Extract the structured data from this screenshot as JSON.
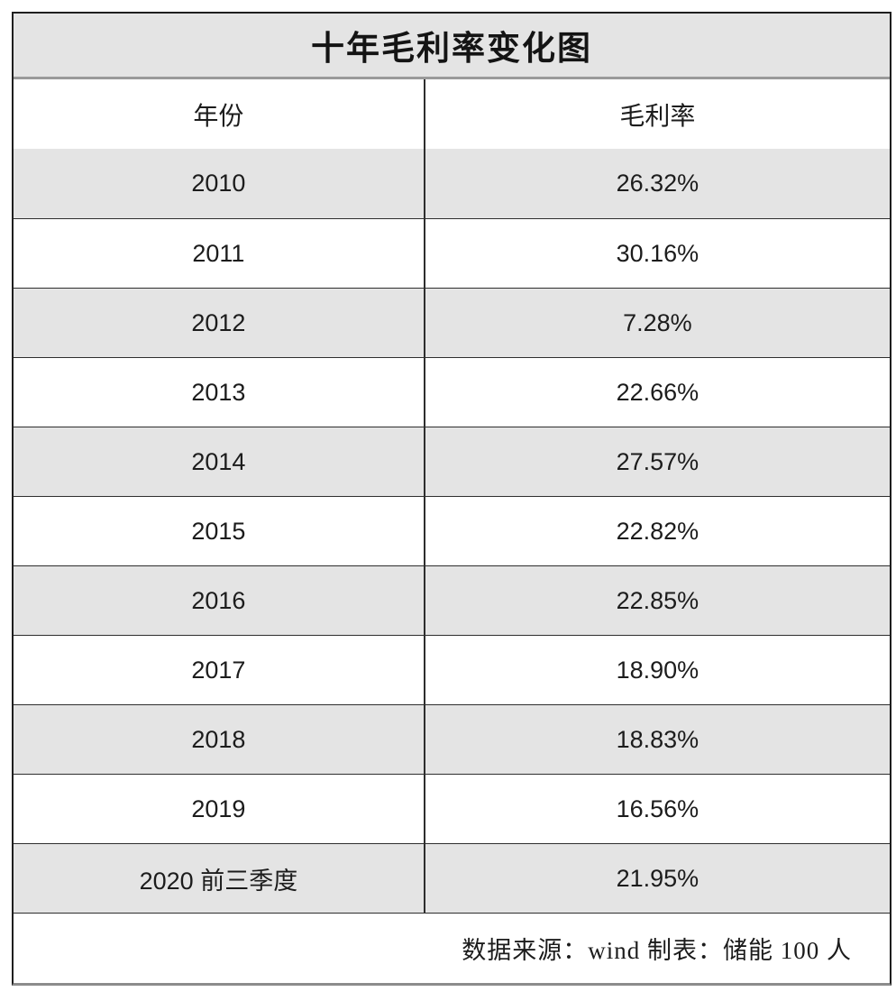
{
  "title": "十年毛利率变化图",
  "columns": {
    "year": "年份",
    "margin": "毛利率"
  },
  "rows": [
    {
      "year": "2010",
      "margin": "26.32%"
    },
    {
      "year": "2011",
      "margin": "30.16%"
    },
    {
      "year": "2012",
      "margin": "7.28%"
    },
    {
      "year": "2013",
      "margin": "22.66%"
    },
    {
      "year": "2014",
      "margin": "27.57%"
    },
    {
      "year": "2015",
      "margin": "22.82%"
    },
    {
      "year": "2016",
      "margin": "22.85%"
    },
    {
      "year": "2017",
      "margin": "18.90%"
    },
    {
      "year": "2018",
      "margin": "18.83%"
    },
    {
      "year": "2019",
      "margin": "16.56%"
    },
    {
      "year": "2020 前三季度",
      "margin": "21.95%"
    }
  ],
  "footer": "数据来源：wind  制表：储能 100 人",
  "colors": {
    "row_alt_background": "#e4e4e4",
    "row_background": "#ffffff",
    "border": "#2e2e2e",
    "text": "#1c1c1c"
  },
  "chart_data": {
    "type": "table",
    "title": "十年毛利率变化图",
    "columns": [
      "年份",
      "毛利率"
    ],
    "categories": [
      "2010",
      "2011",
      "2012",
      "2013",
      "2014",
      "2015",
      "2016",
      "2017",
      "2018",
      "2019",
      "2020 前三季度"
    ],
    "values": [
      26.32,
      30.16,
      7.28,
      22.66,
      27.57,
      22.82,
      22.85,
      18.9,
      18.83,
      16.56,
      21.95
    ],
    "unit": "%",
    "source_note": "数据来源：wind  制表：储能 100 人"
  }
}
